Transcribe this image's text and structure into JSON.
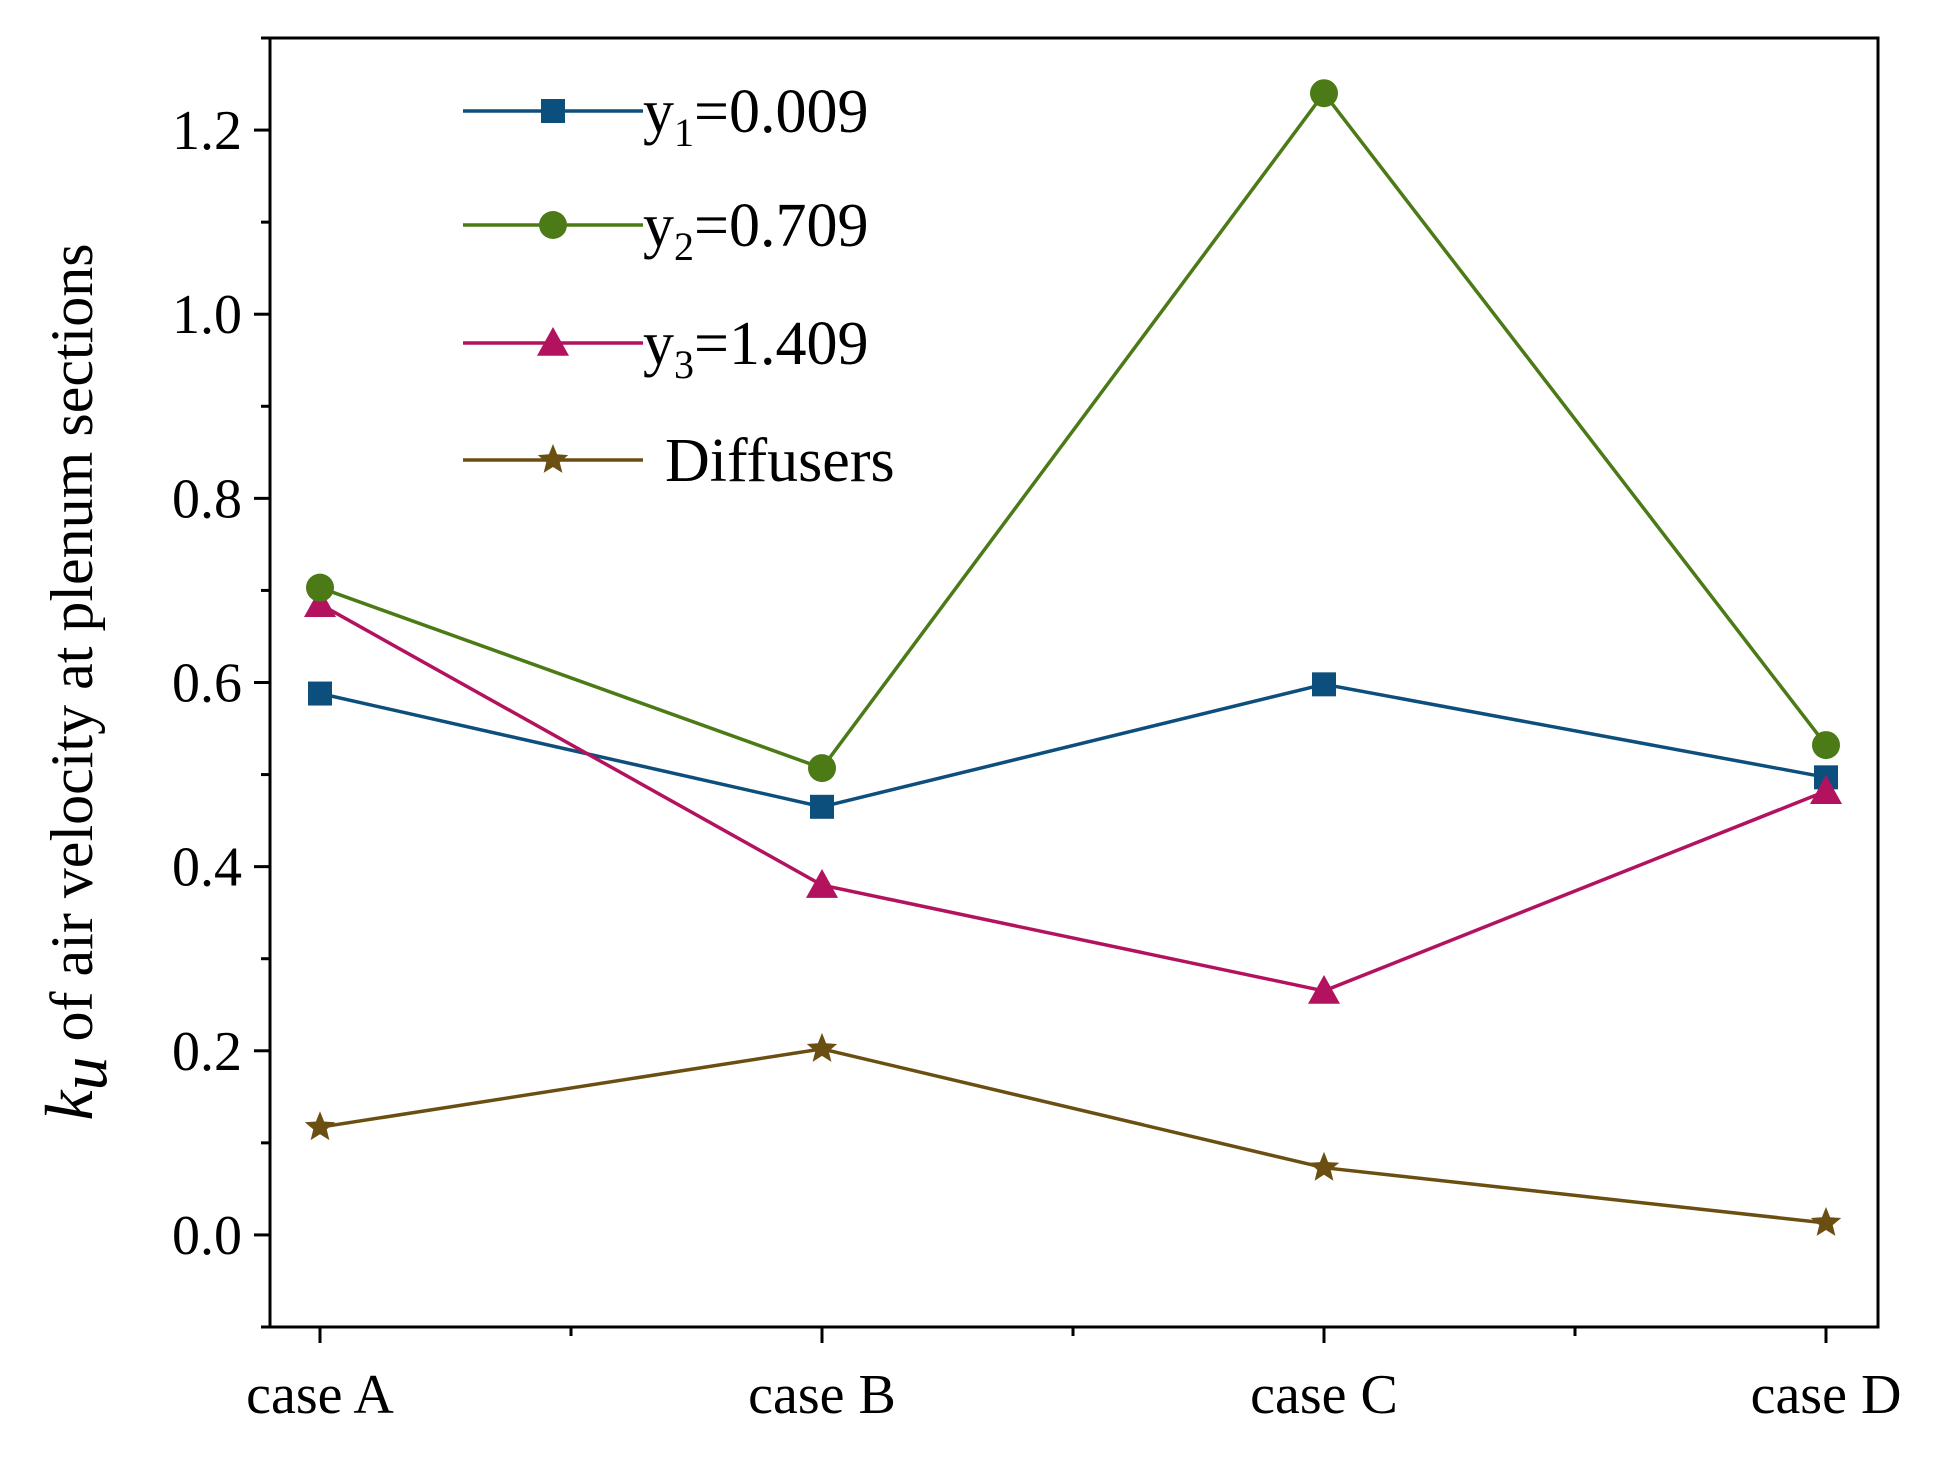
{
  "chart_data": {
    "type": "line",
    "title": "",
    "xlabel": "",
    "ylabel": {
      "symbol": "k",
      "subscript": "u",
      "rest": " of air velocity at plenum sections"
    },
    "categories": [
      "case A",
      "case B",
      "case C",
      "case D"
    ],
    "ylim": [
      -0.1,
      1.3
    ],
    "yticks": [
      0.0,
      0.2,
      0.4,
      0.6,
      0.8,
      1.0,
      1.2
    ],
    "ytick_labels": [
      "0.0",
      "0.2",
      "0.4",
      "0.6",
      "0.8",
      "1.0",
      "1.2"
    ],
    "grid": false,
    "legend_position": "top-center",
    "series": [
      {
        "name": "y1=0.009",
        "legend": {
          "base": "y",
          "sub": "1",
          "rest": "=0.009"
        },
        "color": "#0d4f7c",
        "marker": "square",
        "values": [
          0.588,
          0.465,
          0.598,
          0.497
        ]
      },
      {
        "name": "y2=0.709",
        "legend": {
          "base": "y",
          "sub": "2",
          "rest": "=0.709"
        },
        "color": "#4b7a17",
        "marker": "circle",
        "values": [
          0.703,
          0.507,
          1.24,
          0.532
        ]
      },
      {
        "name": "y3=1.409",
        "legend": {
          "base": "y",
          "sub": "3",
          "rest": "=1.409"
        },
        "color": "#b3125e",
        "marker": "triangle",
        "values": [
          0.685,
          0.38,
          0.265,
          0.482
        ]
      },
      {
        "name": "Diffusers",
        "legend": {
          "base": "Diffusers",
          "sub": "",
          "rest": ""
        },
        "color": "#6b4f12",
        "marker": "star",
        "values": [
          0.117,
          0.202,
          0.073,
          0.013
        ]
      }
    ]
  }
}
